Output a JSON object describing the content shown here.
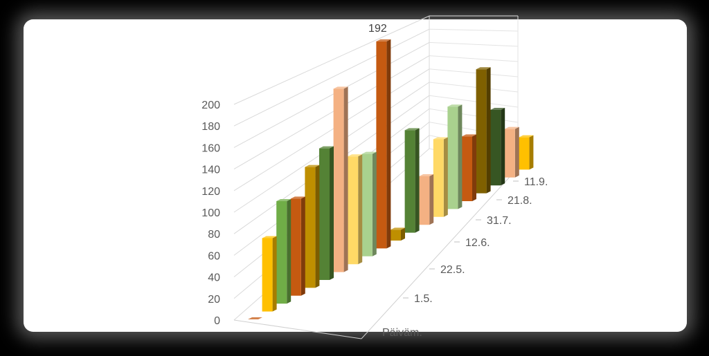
{
  "chart_data": {
    "type": "bar",
    "variant": "3d-column",
    "title": "",
    "ylim": [
      0,
      200
    ],
    "y_ticks": [
      "0",
      "20",
      "40",
      "60",
      "80",
      "100",
      "120",
      "140",
      "160",
      "180",
      "200"
    ],
    "depth_axis_labels": [
      "Päiväm.",
      "1.5.",
      "22.5.",
      "12.6.",
      "31.7.",
      "21.8.",
      "11.9."
    ],
    "data_labels": [
      {
        "text": "192",
        "point": 9
      }
    ],
    "legend": "none",
    "grid": true,
    "colors": {
      "yellow": "#ffc000",
      "green": "#70ad47",
      "orange": "#c55a11",
      "olive": "#bf8f00",
      "darkgreen": "#548235",
      "peach": "#f4b183",
      "lightgreen": "#a9d18e",
      "lightyellow": "#ffd966",
      "dkorange": "#c55a11",
      "brown": "#7f6000",
      "forest": "#375623"
    },
    "points": [
      {
        "value": 0,
        "color": "orange"
      },
      {
        "value": 68,
        "color": "yellow"
      },
      {
        "value": 95,
        "color": "green"
      },
      {
        "value": 90,
        "color": "orange"
      },
      {
        "value": 112,
        "color": "olive"
      },
      {
        "value": 122,
        "color": "darkgreen"
      },
      {
        "value": 170,
        "color": "peach"
      },
      {
        "value": 100,
        "color": "lightyellow"
      },
      {
        "value": 95,
        "color": "lightgreen"
      },
      {
        "value": 192,
        "color": "dkorange"
      },
      {
        "value": 10,
        "color": "olive"
      },
      {
        "value": 95,
        "color": "darkgreen"
      },
      {
        "value": 45,
        "color": "peach"
      },
      {
        "value": 72,
        "color": "lightyellow"
      },
      {
        "value": 95,
        "color": "lightgreen"
      },
      {
        "value": 60,
        "color": "orange"
      },
      {
        "value": 115,
        "color": "brown"
      },
      {
        "value": 70,
        "color": "forest"
      },
      {
        "value": 45,
        "color": "peach"
      },
      {
        "value": 30,
        "color": "yellow"
      }
    ]
  }
}
